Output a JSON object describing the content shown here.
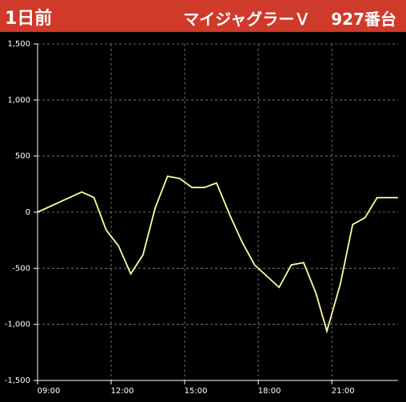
{
  "header": {
    "badge": "1日前",
    "machine": "マイジャグラーＶ",
    "unit": "927番台"
  },
  "chart_data": {
    "type": "line",
    "x": [
      9.0,
      10.8,
      11.3,
      11.8,
      12.3,
      12.8,
      13.3,
      13.8,
      14.3,
      14.8,
      15.3,
      15.8,
      16.3,
      16.85,
      17.35,
      17.85,
      18.85,
      19.35,
      19.85,
      20.35,
      20.8,
      21.35,
      21.85,
      22.35,
      22.85,
      23.7
    ],
    "series": [
      {
        "color": "#ffffa0",
        "values": [
          0,
          180,
          130,
          -160,
          -300,
          -550,
          -380,
          40,
          320,
          300,
          220,
          220,
          260,
          -30,
          -270,
          -470,
          -670,
          -470,
          -450,
          -720,
          -1060,
          -640,
          -110,
          -50,
          130,
          130
        ]
      }
    ],
    "xlim": [
      9,
      23.7
    ],
    "xticks": [
      {
        "value": 9,
        "label": "09:00"
      },
      {
        "value": 12,
        "label": "12:00"
      },
      {
        "value": 15,
        "label": "15:00"
      },
      {
        "value": 18,
        "label": "18:00"
      },
      {
        "value": 21,
        "label": "21:00"
      }
    ],
    "ylim": [
      -1500,
      1500
    ],
    "yticks": [
      {
        "value": -1500,
        "label": "-1,500"
      },
      {
        "value": -1000,
        "label": "-1,000"
      },
      -500,
      0,
      500,
      {
        "value": 1000,
        "label": "1,000"
      },
      {
        "value": 1500,
        "label": "1,500"
      }
    ],
    "grid": true
  }
}
